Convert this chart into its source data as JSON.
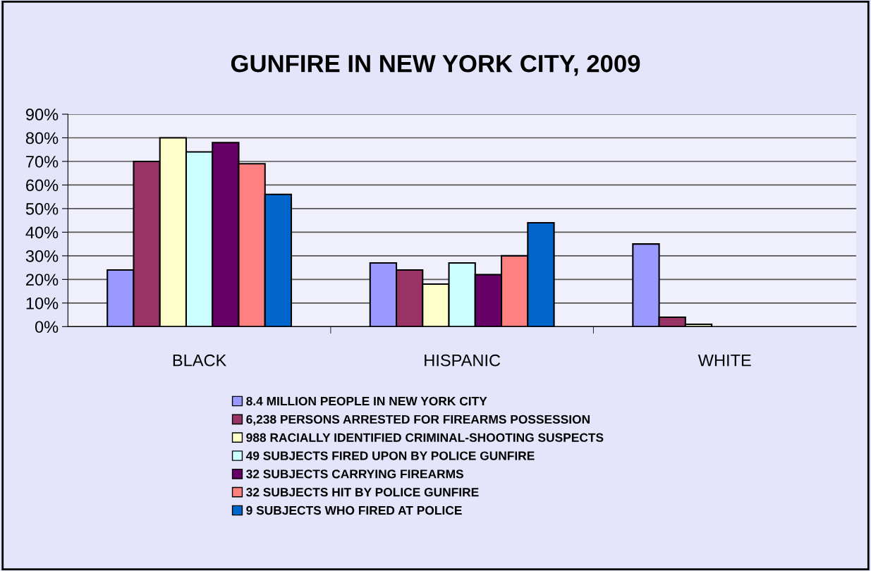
{
  "chart_data": {
    "type": "bar",
    "title": "GUNFIRE IN NEW YORK CITY, 2009",
    "categories": [
      "BLACK",
      "HISPANIC",
      "WHITE"
    ],
    "series": [
      {
        "name": "8.4 MILLION PEOPLE IN NEW YORK CITY",
        "color": "#9999ff",
        "values": [
          24,
          27,
          35
        ]
      },
      {
        "name": "6,238 PERSONS ARRESTED FOR FIREARMS POSSESSION",
        "color": "#993366",
        "values": [
          70,
          24,
          4
        ]
      },
      {
        "name": "988 RACIALLY IDENTIFIED CRIMINAL-SHOOTING SUSPECTS",
        "color": "#ffffcc",
        "values": [
          80,
          18,
          1
        ]
      },
      {
        "name": "49 SUBJECTS FIRED UPON BY POLICE GUNFIRE",
        "color": "#ccffff",
        "values": [
          74,
          27,
          null
        ]
      },
      {
        "name": "32 SUBJECTS CARRYING FIREARMS",
        "color": "#660066",
        "values": [
          78,
          22,
          null
        ]
      },
      {
        "name": "32 SUBJECTS HIT BY POLICE GUNFIRE",
        "color": "#ff8080",
        "values": [
          69,
          30,
          null
        ]
      },
      {
        "name": "9 SUBJECTS WHO FIRED AT POLICE",
        "color": "#0066cc",
        "values": [
          56,
          44,
          null
        ]
      }
    ],
    "ylim": [
      0,
      90
    ],
    "yticks": [
      {
        "value": 0,
        "label": "0%"
      },
      {
        "value": 10,
        "label": "10%"
      },
      {
        "value": 20,
        "label": "20%"
      },
      {
        "value": 30,
        "label": "30%"
      },
      {
        "value": 40,
        "label": "40%"
      },
      {
        "value": 50,
        "label": "50%"
      },
      {
        "value": 60,
        "label": "60%"
      },
      {
        "value": 70,
        "label": "70%"
      },
      {
        "value": 80,
        "label": "80%"
      },
      {
        "value": 90,
        "label": "90%"
      }
    ],
    "grid": "y",
    "legend": "bottom"
  }
}
